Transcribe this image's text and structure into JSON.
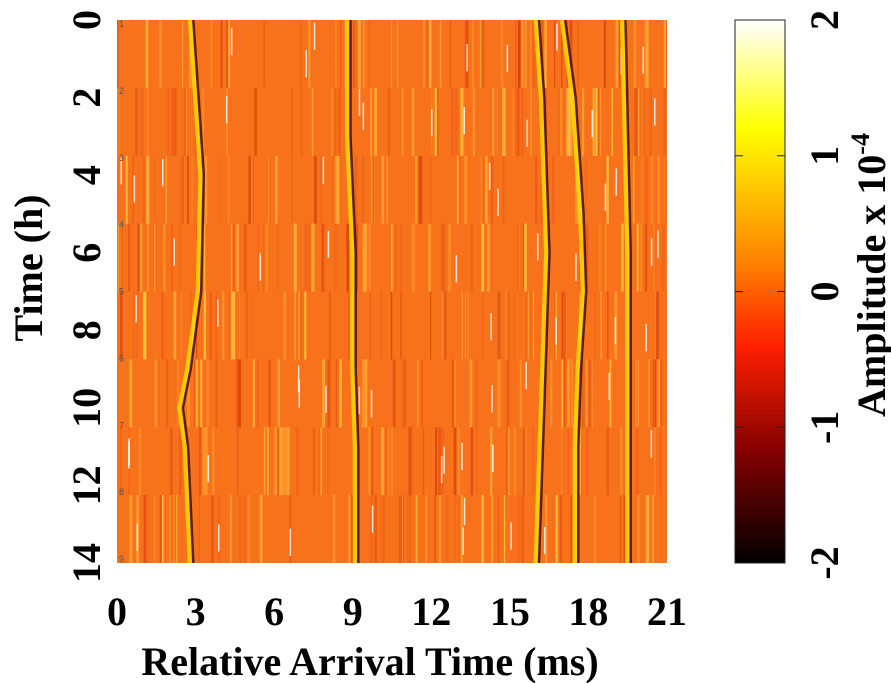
{
  "chart_data": {
    "type": "heatmap",
    "xlabel": "Relative Arrival Time (ms)",
    "ylabel": "Time (h)",
    "xlim": [
      0,
      21
    ],
    "ylim": [
      0,
      14
    ],
    "x_ticks": [
      "0",
      "3",
      "6",
      "9",
      "12",
      "15",
      "18",
      "21"
    ],
    "y_ticks": [
      "0",
      "2",
      "4",
      "6",
      "8",
      "10",
      "12",
      "14"
    ],
    "row_ticks": [
      "1",
      "2",
      "3",
      "4",
      "5",
      "6",
      "7",
      "8",
      "9"
    ],
    "colorbar": {
      "label_main": "Amplitude x 10",
      "label_exp": "-4",
      "ticks": [
        "2",
        "1",
        "0",
        "-1",
        "-2"
      ],
      "range": [
        -2,
        2
      ],
      "colormap": "hot",
      "stops": [
        "#000000",
        "#800000",
        "#ff2000",
        "#ff8000",
        "#ffff00",
        "#ffffff"
      ]
    },
    "background_color": "#f8721c",
    "features": [
      {
        "desc": "arrival path",
        "points": [
          [
            2.8,
            14
          ],
          [
            2.6,
            11
          ],
          [
            2.4,
            10
          ],
          [
            2.7,
            9
          ],
          [
            3.1,
            7
          ],
          [
            3.2,
            4
          ],
          [
            3.0,
            2
          ],
          [
            2.8,
            0
          ]
        ]
      },
      {
        "desc": "arrival path",
        "points": [
          [
            9.1,
            14
          ],
          [
            9.1,
            11
          ],
          [
            9.0,
            9
          ],
          [
            9.0,
            6
          ],
          [
            8.8,
            3
          ],
          [
            8.8,
            0
          ]
        ]
      },
      {
        "desc": "arrival path",
        "points": [
          [
            17.5,
            14
          ],
          [
            17.5,
            11
          ],
          [
            17.6,
            9
          ],
          [
            17.8,
            7
          ],
          [
            17.7,
            5
          ],
          [
            17.4,
            2
          ],
          [
            17.0,
            0
          ]
        ]
      },
      {
        "desc": "arrival path",
        "points": [
          [
            16.0,
            14
          ],
          [
            16.2,
            10
          ],
          [
            16.4,
            6
          ],
          [
            16.2,
            2
          ],
          [
            16.0,
            0
          ]
        ]
      },
      {
        "desc": "arrival path",
        "points": [
          [
            19.5,
            14
          ],
          [
            19.5,
            10
          ],
          [
            19.5,
            6
          ],
          [
            19.3,
            0
          ]
        ]
      }
    ]
  }
}
